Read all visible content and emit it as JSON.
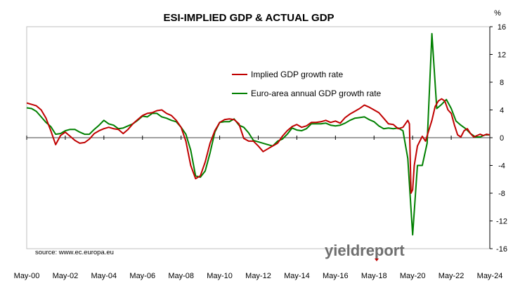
{
  "chart_data": {
    "type": "line",
    "title": "ESI-IMPLIED GDP & ACTUAL GDP",
    "ylabel": "%",
    "xlabel": "",
    "ylim": [
      -16,
      16
    ],
    "yticks": [
      16,
      12,
      8,
      4,
      0,
      -4,
      -8,
      -12,
      -16
    ],
    "y_axis_side": "right",
    "xlim": [
      "2000-05",
      "2024-05"
    ],
    "xticks": [
      "May-00",
      "May-02",
      "May-04",
      "May-06",
      "May-08",
      "May-10",
      "May-12",
      "May-14",
      "May-16",
      "May-18",
      "May-20",
      "May-22",
      "May-24"
    ],
    "grid": false,
    "legend_position": "upper-middle",
    "source": "source: www.ec.europa.eu",
    "logo": "yieldreport",
    "series": [
      {
        "name": "Implied GDP growth rate",
        "color": "#c00000",
        "points": [
          [
            "2000-05",
            5.0
          ],
          [
            "2000-08",
            4.8
          ],
          [
            "2000-11",
            4.6
          ],
          [
            "2001-02",
            4.0
          ],
          [
            "2001-05",
            2.8
          ],
          [
            "2001-08",
            1.0
          ],
          [
            "2001-11",
            -1.0
          ],
          [
            "2002-02",
            0.3
          ],
          [
            "2002-05",
            0.8
          ],
          [
            "2002-08",
            0.2
          ],
          [
            "2002-11",
            -0.4
          ],
          [
            "2003-02",
            -0.8
          ],
          [
            "2003-05",
            -0.7
          ],
          [
            "2003-08",
            -0.2
          ],
          [
            "2003-11",
            0.6
          ],
          [
            "2004-02",
            1.0
          ],
          [
            "2004-05",
            1.3
          ],
          [
            "2004-08",
            1.5
          ],
          [
            "2004-11",
            1.3
          ],
          [
            "2005-02",
            1.2
          ],
          [
            "2005-05",
            0.6
          ],
          [
            "2005-08",
            1.2
          ],
          [
            "2005-11",
            2.0
          ],
          [
            "2006-02",
            2.6
          ],
          [
            "2006-05",
            3.2
          ],
          [
            "2006-08",
            3.5
          ],
          [
            "2006-11",
            3.6
          ],
          [
            "2007-02",
            3.9
          ],
          [
            "2007-05",
            4.0
          ],
          [
            "2007-08",
            3.5
          ],
          [
            "2007-11",
            3.2
          ],
          [
            "2008-02",
            2.5
          ],
          [
            "2008-05",
            1.5
          ],
          [
            "2008-08",
            -0.5
          ],
          [
            "2008-11",
            -4.0
          ],
          [
            "2009-02",
            -5.9
          ],
          [
            "2009-05",
            -5.5
          ],
          [
            "2009-08",
            -3.5
          ],
          [
            "2009-11",
            -0.8
          ],
          [
            "2010-02",
            1.0
          ],
          [
            "2010-05",
            2.2
          ],
          [
            "2010-08",
            2.6
          ],
          [
            "2010-11",
            2.7
          ],
          [
            "2011-02",
            2.6
          ],
          [
            "2011-05",
            2.0
          ],
          [
            "2011-08",
            -0.1
          ],
          [
            "2011-11",
            -0.5
          ],
          [
            "2012-02",
            -0.5
          ],
          [
            "2012-05",
            -1.2
          ],
          [
            "2012-08",
            -2.0
          ],
          [
            "2012-11",
            -1.6
          ],
          [
            "2013-02",
            -1.2
          ],
          [
            "2013-05",
            -0.8
          ],
          [
            "2013-08",
            0.2
          ],
          [
            "2013-11",
            1.0
          ],
          [
            "2014-02",
            1.6
          ],
          [
            "2014-05",
            1.9
          ],
          [
            "2014-08",
            1.5
          ],
          [
            "2014-11",
            1.7
          ],
          [
            "2015-02",
            2.2
          ],
          [
            "2015-05",
            2.2
          ],
          [
            "2015-08",
            2.3
          ],
          [
            "2015-11",
            2.5
          ],
          [
            "2016-02",
            2.2
          ],
          [
            "2016-05",
            2.4
          ],
          [
            "2016-08",
            2.1
          ],
          [
            "2016-11",
            2.9
          ],
          [
            "2017-02",
            3.4
          ],
          [
            "2017-05",
            3.8
          ],
          [
            "2017-08",
            4.2
          ],
          [
            "2017-11",
            4.7
          ],
          [
            "2018-02",
            4.4
          ],
          [
            "2018-05",
            4.0
          ],
          [
            "2018-08",
            3.6
          ],
          [
            "2018-11",
            2.8
          ],
          [
            "2019-02",
            2.0
          ],
          [
            "2019-05",
            1.9
          ],
          [
            "2019-08",
            1.3
          ],
          [
            "2019-11",
            1.5
          ],
          [
            "2020-02",
            2.5
          ],
          [
            "2020-03",
            2.0
          ],
          [
            "2020-04",
            -8.0
          ],
          [
            "2020-05",
            -7.5
          ],
          [
            "2020-06",
            -4.0
          ],
          [
            "2020-08",
            -1.2
          ],
          [
            "2020-11",
            0.2
          ],
          [
            "2021-01",
            -0.5
          ],
          [
            "2021-03",
            1.0
          ],
          [
            "2021-05",
            2.5
          ],
          [
            "2021-07",
            4.5
          ],
          [
            "2021-09",
            5.3
          ],
          [
            "2021-11",
            5.6
          ],
          [
            "2022-01",
            5.3
          ],
          [
            "2022-03",
            4.0
          ],
          [
            "2022-05",
            3.5
          ],
          [
            "2022-07",
            1.8
          ],
          [
            "2022-09",
            0.4
          ],
          [
            "2022-11",
            0.1
          ],
          [
            "2023-01",
            1.0
          ],
          [
            "2023-03",
            1.3
          ],
          [
            "2023-05",
            0.6
          ],
          [
            "2023-07",
            0.1
          ],
          [
            "2023-09",
            0.3
          ],
          [
            "2023-11",
            0.5
          ],
          [
            "2024-01",
            0.3
          ],
          [
            "2024-03",
            0.5
          ],
          [
            "2024-05",
            0.4
          ]
        ]
      },
      {
        "name": "Euro-area annual GDP growth rate",
        "color": "#008000",
        "points": [
          [
            "2000-05",
            4.3
          ],
          [
            "2000-08",
            4.2
          ],
          [
            "2000-11",
            3.8
          ],
          [
            "2001-02",
            3.0
          ],
          [
            "2001-05",
            2.2
          ],
          [
            "2001-08",
            1.6
          ],
          [
            "2001-11",
            0.5
          ],
          [
            "2002-02",
            0.6
          ],
          [
            "2002-05",
            1.0
          ],
          [
            "2002-08",
            1.2
          ],
          [
            "2002-11",
            1.2
          ],
          [
            "2003-02",
            0.8
          ],
          [
            "2003-05",
            0.5
          ],
          [
            "2003-08",
            0.5
          ],
          [
            "2003-11",
            1.2
          ],
          [
            "2004-02",
            1.8
          ],
          [
            "2004-05",
            2.5
          ],
          [
            "2004-08",
            2.0
          ],
          [
            "2004-11",
            1.8
          ],
          [
            "2005-02",
            1.3
          ],
          [
            "2005-05",
            1.4
          ],
          [
            "2005-08",
            1.7
          ],
          [
            "2005-11",
            2.0
          ],
          [
            "2006-02",
            2.5
          ],
          [
            "2006-05",
            3.1
          ],
          [
            "2006-08",
            3.0
          ],
          [
            "2006-11",
            3.5
          ],
          [
            "2007-02",
            3.5
          ],
          [
            "2007-05",
            3.0
          ],
          [
            "2007-08",
            2.8
          ],
          [
            "2007-11",
            2.5
          ],
          [
            "2008-02",
            2.3
          ],
          [
            "2008-05",
            1.5
          ],
          [
            "2008-08",
            0.5
          ],
          [
            "2008-11",
            -1.8
          ],
          [
            "2009-02",
            -5.5
          ],
          [
            "2009-05",
            -5.7
          ],
          [
            "2009-08",
            -4.8
          ],
          [
            "2009-11",
            -2.2
          ],
          [
            "2010-02",
            0.8
          ],
          [
            "2010-05",
            2.2
          ],
          [
            "2010-08",
            2.3
          ],
          [
            "2010-11",
            2.3
          ],
          [
            "2011-02",
            2.7
          ],
          [
            "2011-05",
            1.8
          ],
          [
            "2011-08",
            1.5
          ],
          [
            "2011-11",
            0.7
          ],
          [
            "2012-02",
            -0.4
          ],
          [
            "2012-05",
            -0.6
          ],
          [
            "2012-08",
            -0.8
          ],
          [
            "2012-11",
            -1.0
          ],
          [
            "2013-02",
            -1.2
          ],
          [
            "2013-05",
            -0.5
          ],
          [
            "2013-08",
            -0.2
          ],
          [
            "2013-11",
            0.5
          ],
          [
            "2014-02",
            1.4
          ],
          [
            "2014-05",
            1.1
          ],
          [
            "2014-08",
            1.0
          ],
          [
            "2014-11",
            1.3
          ],
          [
            "2015-02",
            2.0
          ],
          [
            "2015-05",
            2.0
          ],
          [
            "2015-08",
            2.0
          ],
          [
            "2015-11",
            2.1
          ],
          [
            "2016-02",
            1.8
          ],
          [
            "2016-05",
            1.7
          ],
          [
            "2016-08",
            1.8
          ],
          [
            "2016-11",
            2.1
          ],
          [
            "2017-02",
            2.5
          ],
          [
            "2017-05",
            2.8
          ],
          [
            "2017-08",
            2.9
          ],
          [
            "2017-11",
            3.0
          ],
          [
            "2018-02",
            2.6
          ],
          [
            "2018-05",
            2.3
          ],
          [
            "2018-08",
            1.7
          ],
          [
            "2018-11",
            1.3
          ],
          [
            "2019-02",
            1.4
          ],
          [
            "2019-05",
            1.3
          ],
          [
            "2019-08",
            1.4
          ],
          [
            "2019-11",
            1.0
          ],
          [
            "2020-02",
            -3.0
          ],
          [
            "2020-05",
            -14.0
          ],
          [
            "2020-08",
            -4.0
          ],
          [
            "2020-11",
            -4.0
          ],
          [
            "2021-02",
            -0.8
          ],
          [
            "2021-05",
            15.0
          ],
          [
            "2021-08",
            4.2
          ],
          [
            "2021-11",
            4.8
          ],
          [
            "2022-02",
            5.5
          ],
          [
            "2022-05",
            4.2
          ],
          [
            "2022-08",
            2.4
          ],
          [
            "2022-11",
            1.8
          ],
          [
            "2023-02",
            1.3
          ],
          [
            "2023-05",
            0.6
          ],
          [
            "2023-08",
            0.1
          ],
          [
            "2023-11",
            0.1
          ],
          [
            "2024-02",
            0.4
          ],
          [
            "2024-05",
            0.4
          ]
        ]
      }
    ]
  }
}
